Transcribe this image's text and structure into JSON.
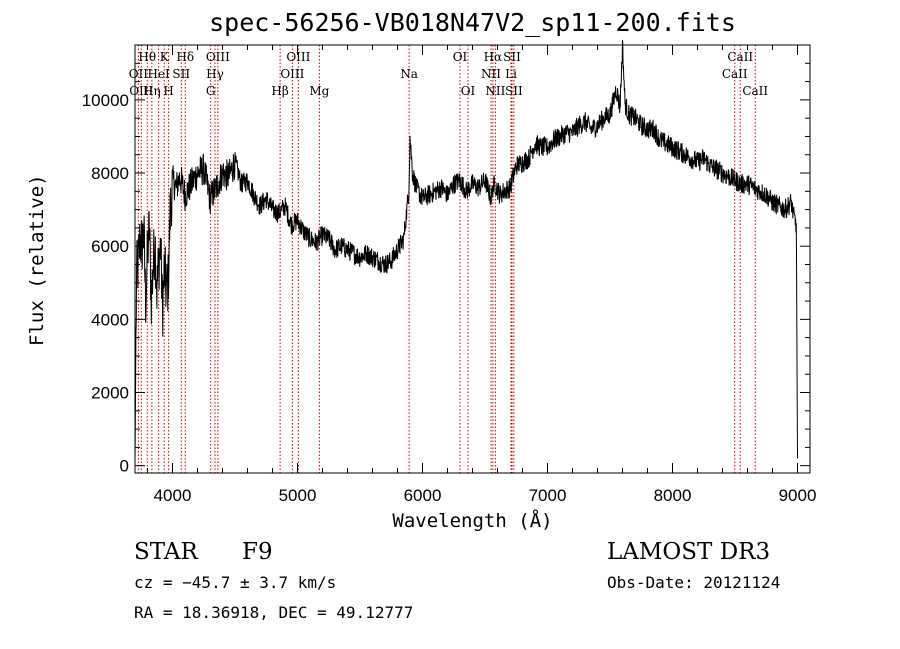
{
  "chart_data": {
    "type": "line",
    "title": "spec-56256-VB018N47V2_sp11-200.fits",
    "xlabel": "Wavelength (Å)",
    "ylabel": "Flux (relative)",
    "xlim": [
      3700,
      9100
    ],
    "ylim": [
      -200,
      11500
    ],
    "xticks": [
      4000,
      5000,
      6000,
      7000,
      8000,
      9000
    ],
    "yticks": [
      0,
      2000,
      4000,
      6000,
      8000,
      10000
    ],
    "grid": false,
    "line_color": "#000000",
    "marker_color": "#cc0000",
    "spectrum": {
      "x": [
        3700,
        3712,
        3725,
        3740,
        3755,
        3770,
        3785,
        3800,
        3815,
        3830,
        3845,
        3860,
        3875,
        3890,
        3905,
        3920,
        3935,
        3950,
        3965,
        3980,
        4000,
        4030,
        4060,
        4100,
        4150,
        4200,
        4250,
        4300,
        4350,
        4400,
        4450,
        4500,
        4550,
        4600,
        4650,
        4700,
        4750,
        4800,
        4850,
        4900,
        4950,
        5000,
        5050,
        5100,
        5150,
        5200,
        5250,
        5300,
        5350,
        5400,
        5450,
        5500,
        5550,
        5600,
        5650,
        5700,
        5750,
        5800,
        5850,
        5890,
        5900,
        5920,
        5950,
        6000,
        6050,
        6100,
        6150,
        6200,
        6250,
        6300,
        6350,
        6400,
        6450,
        6500,
        6550,
        6563,
        6580,
        6620,
        6650,
        6700,
        6750,
        6800,
        6850,
        6900,
        6950,
        7000,
        7050,
        7100,
        7150,
        7200,
        7250,
        7300,
        7350,
        7400,
        7450,
        7500,
        7550,
        7580,
        7600,
        7620,
        7650,
        7700,
        7750,
        7800,
        7850,
        7900,
        7950,
        8000,
        8050,
        8100,
        8150,
        8200,
        8250,
        8300,
        8350,
        8400,
        8450,
        8500,
        8550,
        8600,
        8650,
        8700,
        8750,
        8800,
        8850,
        8900,
        8950,
        8970,
        8990,
        9000
      ],
      "y": [
        100,
        5200,
        5500,
        6200,
        6000,
        6400,
        4500,
        5800,
        6500,
        4600,
        5400,
        6200,
        4800,
        5600,
        6000,
        4200,
        5400,
        4800,
        5000,
        6800,
        7800,
        7600,
        7900,
        7400,
        7700,
        8000,
        8100,
        7300,
        7600,
        8000,
        7900,
        8300,
        7700,
        7800,
        7400,
        7100,
        7300,
        7000,
        6900,
        7100,
        6600,
        6700,
        6400,
        6200,
        6100,
        6300,
        6200,
        5900,
        6000,
        5900,
        5800,
        5700,
        5800,
        5700,
        5600,
        5500,
        5600,
        5900,
        6200,
        7500,
        9000,
        8000,
        7600,
        7300,
        7400,
        7500,
        7600,
        7400,
        7700,
        7800,
        7500,
        7700,
        7600,
        7800,
        7300,
        7600,
        7700,
        7400,
        7500,
        7600,
        8200,
        8300,
        8400,
        8800,
        8700,
        8700,
        8900,
        9000,
        9100,
        9100,
        9300,
        9400,
        9200,
        9300,
        9500,
        9600,
        10300,
        9800,
        11500,
        9900,
        9600,
        9500,
        9300,
        9200,
        9200,
        8900,
        8800,
        8700,
        8600,
        8500,
        8400,
        8300,
        8400,
        8200,
        8100,
        8000,
        7900,
        7800,
        7700,
        7700,
        7600,
        7500,
        7400,
        7200,
        7100,
        7000,
        7200,
        6800,
        6600,
        200
      ]
    },
    "lines": [
      {
        "label": "Hθ",
        "x": 3798,
        "row": 0
      },
      {
        "label": "K",
        "x": 3934,
        "row": 0
      },
      {
        "label": "Hδ",
        "x": 4102,
        "row": 0
      },
      {
        "label": "OIII",
        "x": 4363,
        "row": 0
      },
      {
        "label": "OIII",
        "x": 5007,
        "row": 0
      },
      {
        "label": "OI",
        "x": 6300,
        "row": 0
      },
      {
        "label": "Hα",
        "x": 6563,
        "row": 0
      },
      {
        "label": "SII",
        "x": 6716,
        "row": 0
      },
      {
        "label": "CaII",
        "x": 8542,
        "row": 0
      },
      {
        "label": "OII",
        "x": 3727,
        "row": 1
      },
      {
        "label": "HeI",
        "x": 3889,
        "row": 1
      },
      {
        "label": "SII",
        "x": 4070,
        "row": 1
      },
      {
        "label": "Hγ",
        "x": 4340,
        "row": 1
      },
      {
        "label": "OIII",
        "x": 4959,
        "row": 1
      },
      {
        "label": "Na",
        "x": 5893,
        "row": 1
      },
      {
        "label": "NII",
        "x": 6548,
        "row": 1
      },
      {
        "label": "Li",
        "x": 6708,
        "row": 1
      },
      {
        "label": "CaII",
        "x": 8498,
        "row": 1
      },
      {
        "label": "OIII",
        "x": 3750,
        "row": 2
      },
      {
        "label": "Hη",
        "x": 3835,
        "row": 2
      },
      {
        "label": "H",
        "x": 3969,
        "row": 2
      },
      {
        "label": "G",
        "x": 4305,
        "row": 2
      },
      {
        "label": "Hβ",
        "x": 4861,
        "row": 2
      },
      {
        "label": "Mg",
        "x": 5175,
        "row": 2
      },
      {
        "label": "OI",
        "x": 6364,
        "row": 2
      },
      {
        "label": "NII",
        "x": 6583,
        "row": 2
      },
      {
        "label": "SII",
        "x": 6731,
        "row": 2
      },
      {
        "label": "CaII",
        "x": 8662,
        "row": 2
      }
    ]
  },
  "info": {
    "class": "STAR",
    "subclass": "F9",
    "survey": "LAMOST DR3",
    "cz": "cz = −45.7 ± 3.7 km/s",
    "obsdate": "Obs-Date: 20121124",
    "radec": "RA =  18.36918, DEC =  49.12777"
  }
}
